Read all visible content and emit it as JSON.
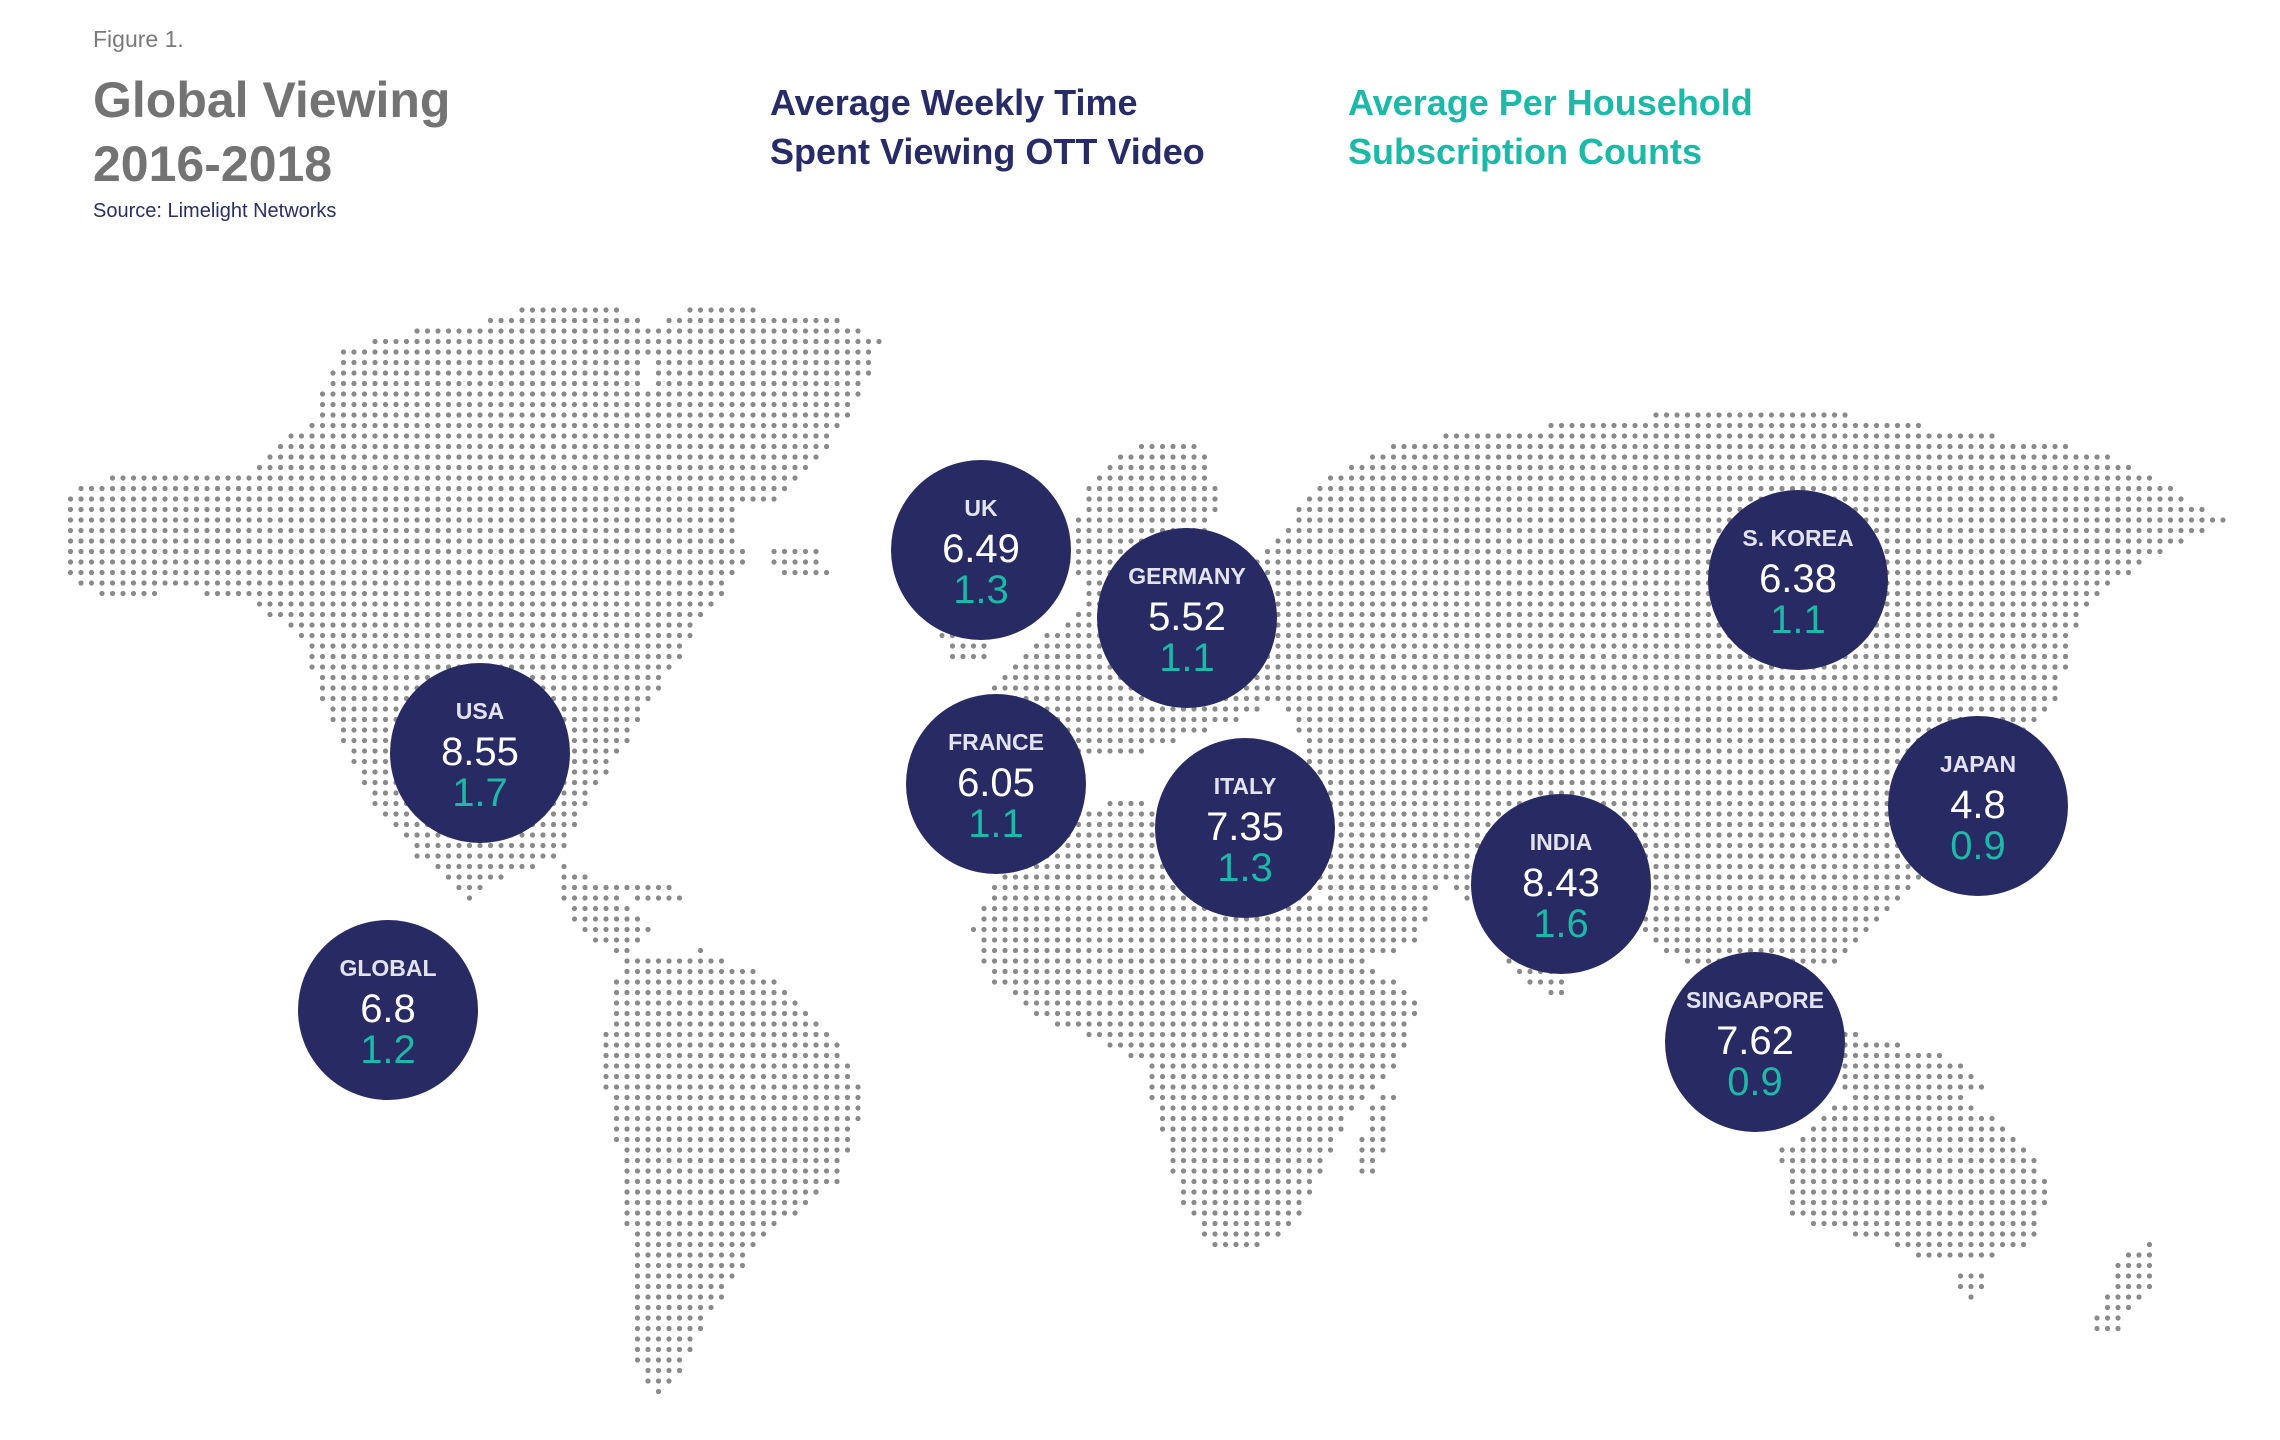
{
  "header": {
    "figure_label": "Figure 1.",
    "title_line1": "Global Viewing",
    "title_line2": "2016-2018",
    "source": "Source: Limelight Networks"
  },
  "legend": {
    "weekly_time_line1": "Average Weekly Time",
    "weekly_time_line2": "Spent Viewing OTT Video",
    "subscriptions_line1": "Average Per Household",
    "subscriptions_line2": "Subscription Counts"
  },
  "colors": {
    "bubble": "#282b63",
    "subscription_value": "#1cb8a8",
    "map_dots": "#8a8a8a"
  },
  "regions": [
    {
      "name": "USA",
      "weekly_hours": "8.55",
      "subscriptions": "1.7"
    },
    {
      "name": "GLOBAL",
      "weekly_hours": "6.8",
      "subscriptions": "1.2"
    },
    {
      "name": "UK",
      "weekly_hours": "6.49",
      "subscriptions": "1.3"
    },
    {
      "name": "GERMANY",
      "weekly_hours": "5.52",
      "subscriptions": "1.1"
    },
    {
      "name": "FRANCE",
      "weekly_hours": "6.05",
      "subscriptions": "1.1"
    },
    {
      "name": "ITALY",
      "weekly_hours": "7.35",
      "subscriptions": "1.3"
    },
    {
      "name": "INDIA",
      "weekly_hours": "8.43",
      "subscriptions": "1.6"
    },
    {
      "name": "S. KOREA",
      "weekly_hours": "6.38",
      "subscriptions": "1.1"
    },
    {
      "name": "JAPAN",
      "weekly_hours": "4.8",
      "subscriptions": "0.9"
    },
    {
      "name": "SINGAPORE",
      "weekly_hours": "7.62",
      "subscriptions": "0.9"
    }
  ]
}
